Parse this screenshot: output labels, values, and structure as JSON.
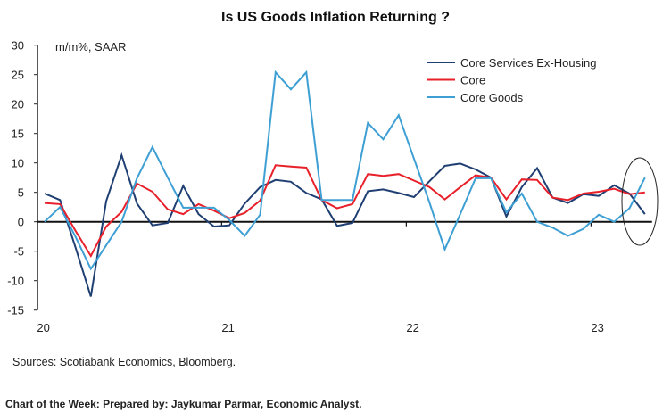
{
  "chart_data": {
    "type": "line",
    "title": "Is US Goods Inflation Returning ?",
    "ylabel": "m/m%, SAAR",
    "xlabel": "",
    "ylim": [
      -15,
      30
    ],
    "yticks": [
      -15,
      -10,
      -5,
      0,
      5,
      10,
      15,
      20,
      25,
      30
    ],
    "xticks": [
      "20",
      "21",
      "22",
      "23"
    ],
    "x_start": "2020-01",
    "x_frequency": "monthly",
    "legend_position": "top-right",
    "grid": false,
    "series": [
      {
        "name": "Core Services Ex-Housing",
        "color": "#1f3f73",
        "values": [
          4.8,
          3.7,
          -4.3,
          -12.7,
          3.5,
          11.3,
          3.1,
          -0.6,
          -0.2,
          6.1,
          1.3,
          -0.8,
          -0.6,
          3.1,
          5.9,
          7.1,
          6.8,
          4.9,
          3.8,
          -0.7,
          -0.2,
          5.2,
          5.5,
          4.9,
          4.2,
          6.9,
          9.5,
          9.9,
          8.9,
          7.5,
          0.9,
          5.9,
          9.1,
          4.1,
          3.2,
          4.7,
          4.4,
          6.2,
          4.8,
          1.3
        ]
      },
      {
        "name": "Core",
        "color": "#e8202a",
        "values": [
          3.2,
          3.0,
          -1.5,
          -5.8,
          -0.8,
          1.7,
          6.5,
          5.1,
          2.1,
          1.3,
          3.0,
          1.9,
          0.6,
          1.5,
          3.6,
          9.6,
          9.4,
          9.2,
          3.7,
          2.3,
          3.0,
          8.1,
          7.8,
          8.1,
          7.0,
          5.9,
          3.8,
          5.9,
          7.9,
          7.5,
          3.8,
          7.2,
          7.1,
          4.1,
          3.7,
          4.8,
          5.1,
          5.6,
          4.7,
          5.0
        ]
      },
      {
        "name": "Core Goods",
        "color": "#3d9fd3",
        "values": [
          0,
          2.5,
          -2.5,
          -8.0,
          -4.0,
          0,
          7.4,
          12.7,
          7.5,
          2.4,
          2.4,
          2.4,
          0.3,
          -2.4,
          1.2,
          25.4,
          22.5,
          25.4,
          3.7,
          3.7,
          3.7,
          16.8,
          14.0,
          18.1,
          10.7,
          3.3,
          -4.7,
          1.3,
          7.4,
          7.4,
          1.6,
          4.8,
          0,
          -1.0,
          -2.4,
          -1.2,
          1.2,
          0,
          2.3,
          7.5
        ]
      }
    ]
  },
  "sources": "Sources: Scotiabank Economics, Bloomberg.",
  "footer": "Chart of the Week: Prepared by: Jaykumar Parmar, Economic Analyst."
}
